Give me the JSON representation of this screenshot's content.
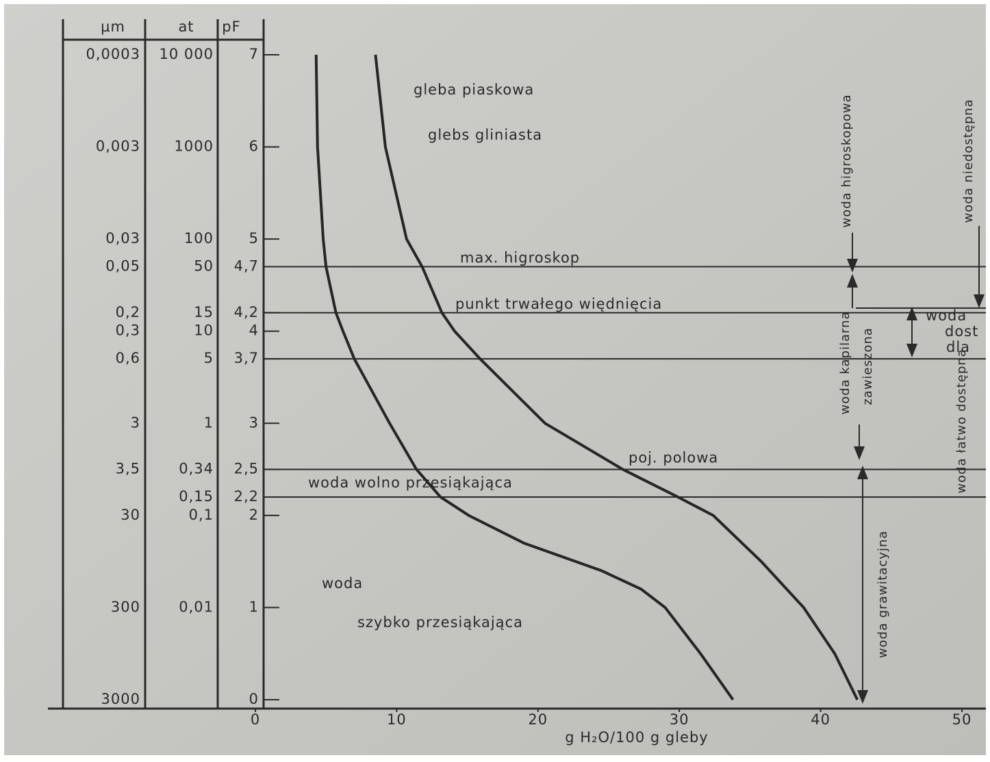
{
  "chart_data": {
    "type": "line",
    "xlabel": "g H₂O/100 g gleby",
    "xlim": [
      0,
      50
    ],
    "xticks": [
      0,
      10,
      20,
      30,
      40,
      50
    ],
    "ylim": [
      0,
      7
    ],
    "yticks": [
      7,
      6,
      5,
      {
        "value": 4.7,
        "label": "4,7"
      },
      {
        "value": 4.2,
        "label": "4,2"
      },
      4,
      {
        "value": 3.7,
        "label": "3,7"
      },
      3,
      {
        "value": 2.5,
        "label": "2,5"
      },
      {
        "value": 2.2,
        "label": "2,2"
      },
      2,
      1,
      0
    ],
    "scale_columns": [
      {
        "header": "µm",
        "labels": [
          "0,0003",
          "0,003",
          "0,03",
          "0,05",
          "0,2",
          "0,3",
          "0,6",
          "3",
          "3,5",
          null,
          "30",
          "300",
          "3000"
        ]
      },
      {
        "header": "at",
        "labels": [
          "10 000",
          "1000",
          "100",
          "50",
          "15",
          "10",
          "5",
          "1",
          "0,34",
          "0,15",
          "0,1",
          "0,01",
          null
        ]
      },
      {
        "header": "pF"
      }
    ],
    "series": [
      {
        "name": "gleba piaskowa",
        "color": "#262626",
        "x": [
          4.3,
          4.4,
          4.8,
          5.0,
          5.7,
          6.2,
          7.0,
          9.5,
          11.4,
          13.1,
          15.1,
          19.0,
          24.5,
          27.3,
          29.0,
          31.5,
          33.8
        ],
        "values": [
          7,
          6,
          5,
          4.7,
          4.2,
          4,
          3.7,
          3,
          2.5,
          2.2,
          2,
          1.7,
          1.4,
          1.2,
          1,
          0.5,
          0
        ]
      },
      {
        "name": "glebs gliniasta",
        "color": "#262626",
        "x": [
          8.5,
          9.2,
          10.7,
          11.8,
          13.2,
          14.1,
          15.9,
          20.5,
          26.0,
          29.9,
          32.4,
          35.8,
          38.8,
          41.0,
          42.6
        ],
        "values": [
          7,
          6,
          5,
          4.7,
          4.2,
          4,
          3.7,
          3,
          2.5,
          2.2,
          2,
          1.5,
          1,
          0.5,
          0
        ]
      }
    ],
    "reference_lines": [
      {
        "value": 4.7,
        "label": "max. higroskop"
      },
      {
        "value": 4.2,
        "label": "punkt trwałego więdnięcia"
      },
      {
        "value": 3.7
      },
      {
        "value": 2.5,
        "label": "poj. polowa"
      },
      {
        "value": 2.2,
        "label": "woda wolno przesiąkająca"
      }
    ],
    "annotations": [
      "woda",
      "szybko przesiąkająca",
      "woda higroskopowa",
      "woda niedostępna",
      "woda kapilarna",
      "zawieszona",
      "woda grawitacyjna",
      "woda łatwo dostępna",
      "woda",
      "dost",
      "dla"
    ]
  }
}
